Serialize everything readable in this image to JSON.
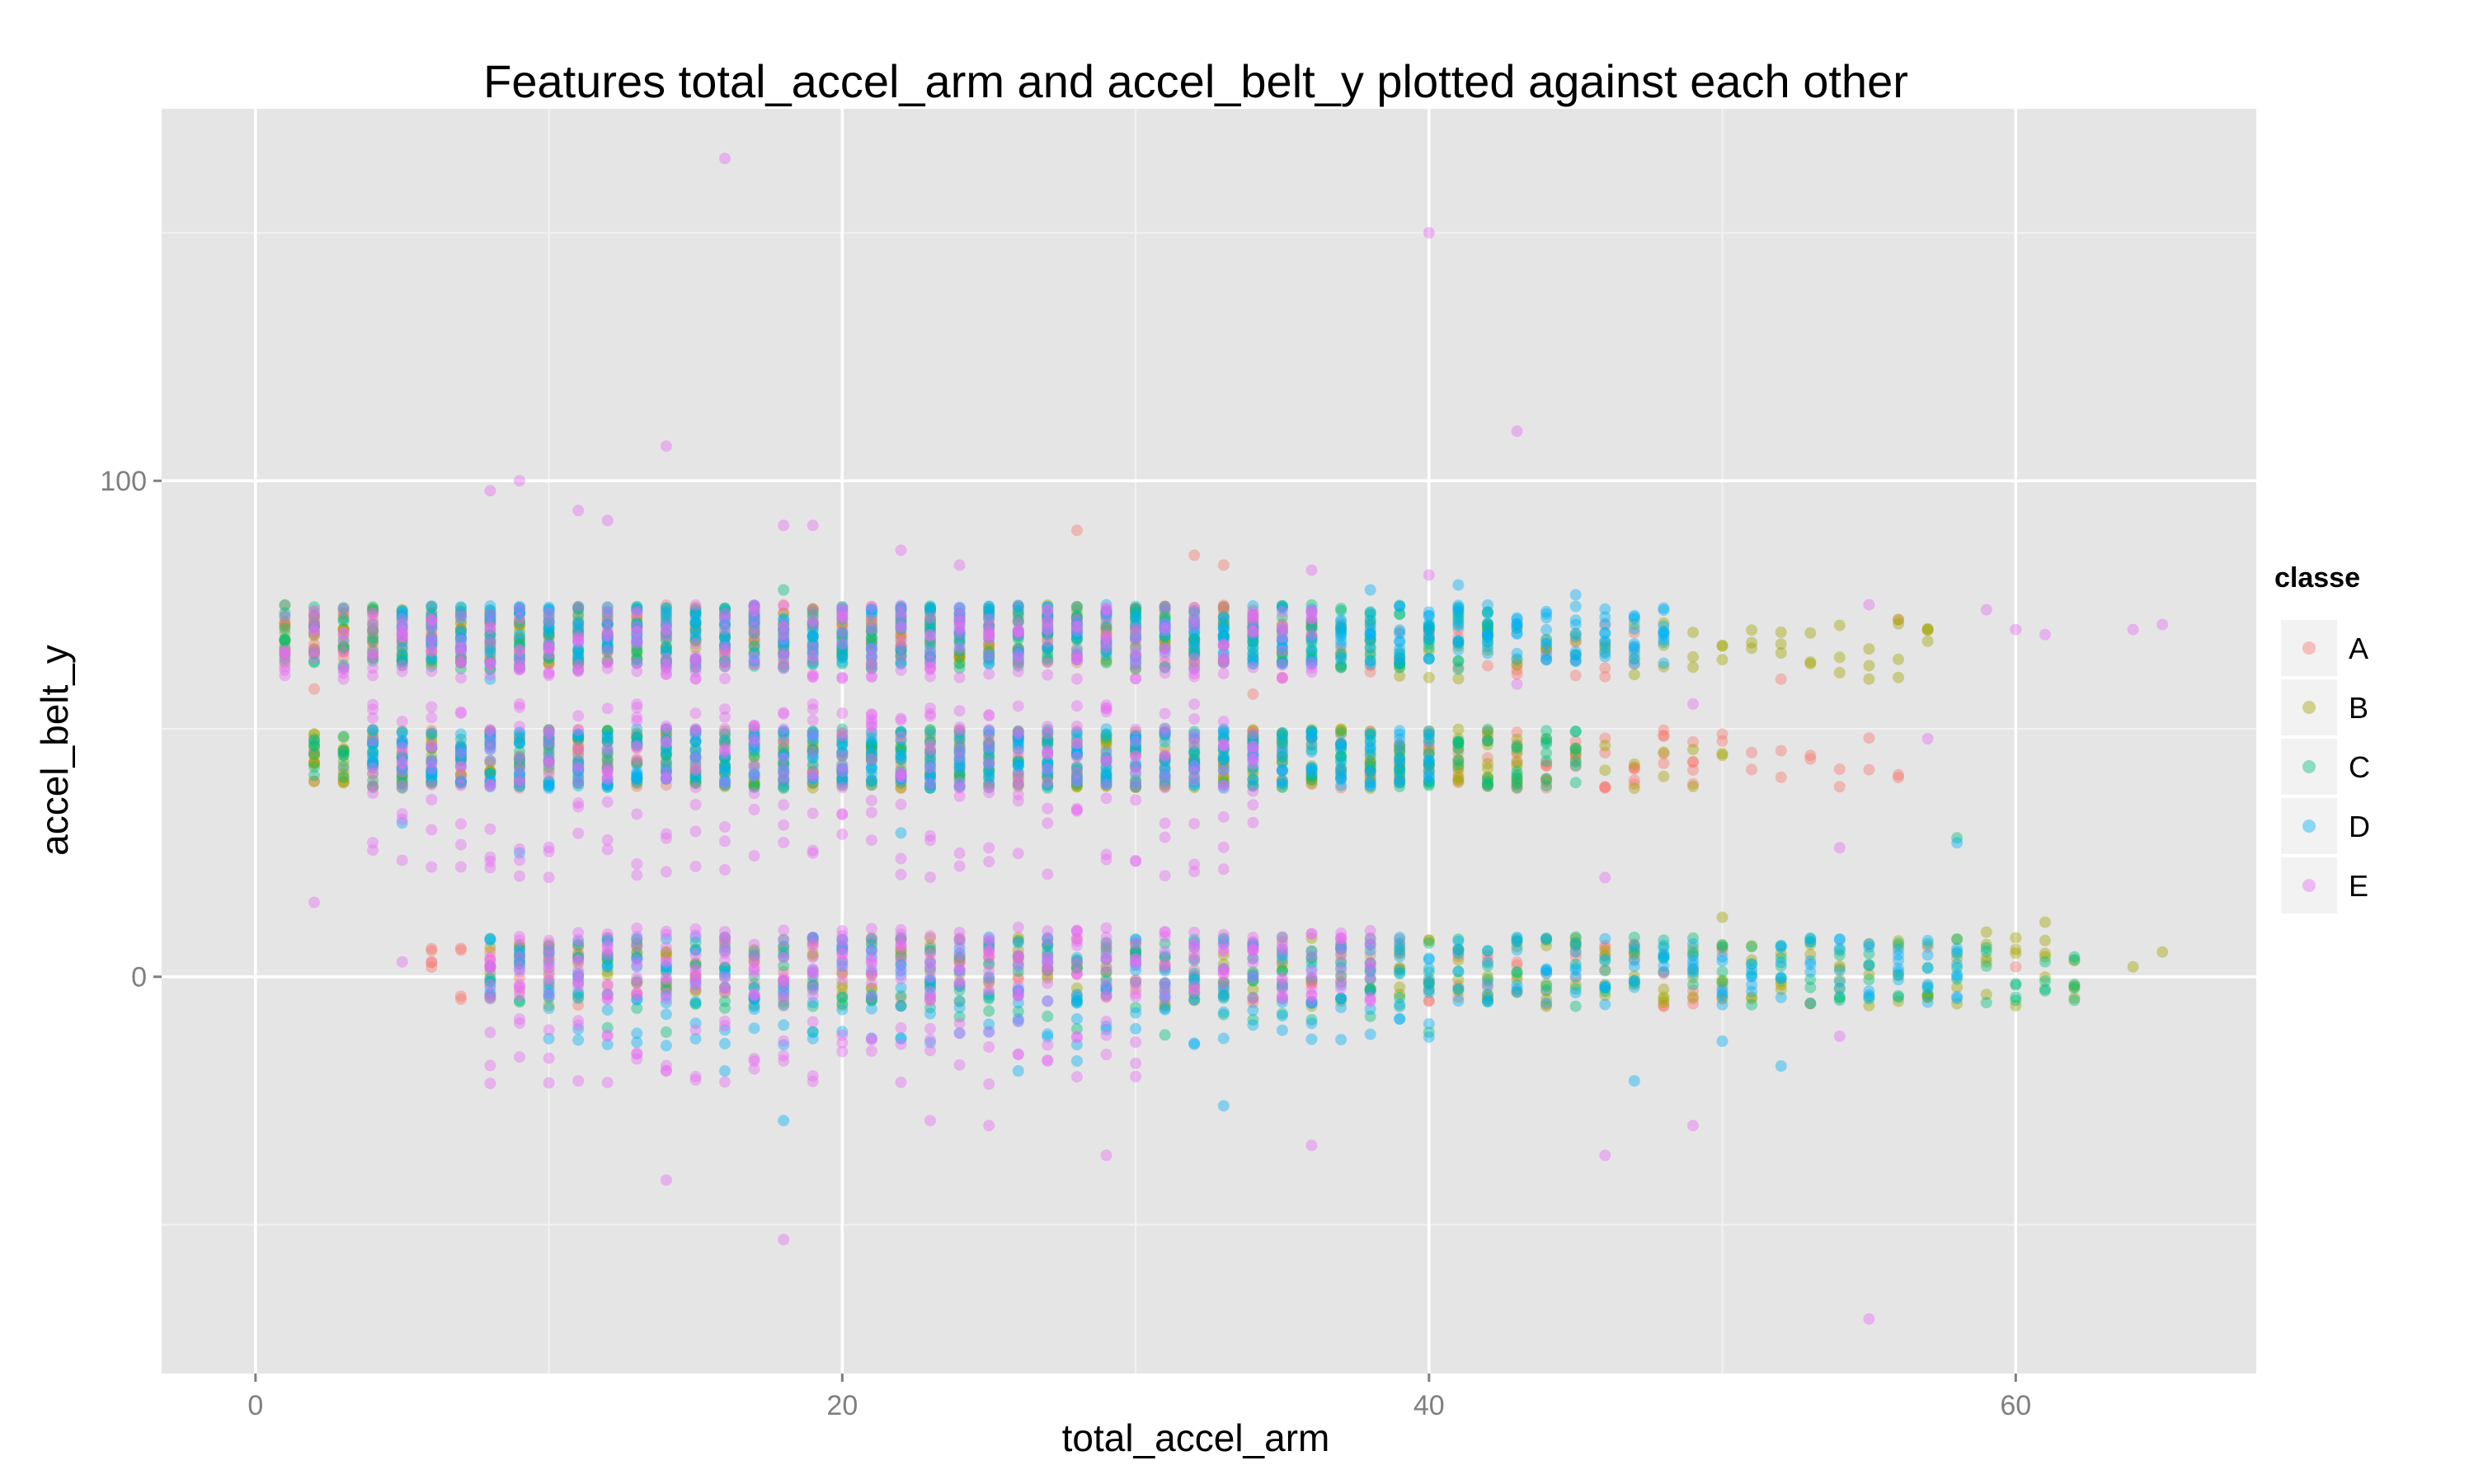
{
  "chart_data": {
    "type": "scatter",
    "title": "Features  total_accel_arm  and  accel_belt_y  plotted against each other",
    "xlabel": "total_accel_arm",
    "ylabel": "accel_belt_y",
    "xlim": [
      -3.2,
      68.2
    ],
    "ylim": [
      -80,
      175
    ],
    "x_ticks": [
      0,
      20,
      40,
      60
    ],
    "x_tick_labels": [
      "0",
      "20",
      "40",
      "60"
    ],
    "y_ticks": [
      0,
      100
    ],
    "y_tick_labels": [
      "0",
      "100"
    ],
    "grid": true,
    "legend_title": "classe",
    "legend_position": "right",
    "series": [
      {
        "name": "A",
        "color": "#F8766D",
        "bands": [
          [
            1,
            34,
            63,
            75,
            7
          ],
          [
            35,
            47,
            60,
            72,
            3
          ],
          [
            2,
            49,
            38,
            50,
            5
          ],
          [
            50,
            56,
            38,
            50,
            2
          ],
          [
            6,
            50,
            -6,
            8,
            4
          ]
        ],
        "points": [
          [
            2,
            58
          ],
          [
            28,
            90
          ],
          [
            32,
            85
          ],
          [
            33,
            83
          ],
          [
            34,
            57
          ],
          [
            52,
            60
          ],
          [
            56,
            72
          ],
          [
            44,
            43
          ],
          [
            43,
            38
          ],
          [
            45,
            46
          ],
          [
            6,
            3
          ],
          [
            57,
            6
          ],
          [
            60,
            2
          ]
        ]
      },
      {
        "name": "B",
        "color": "#A3A500",
        "bands": [
          [
            1,
            36,
            63,
            75,
            7
          ],
          [
            37,
            57,
            60,
            72,
            3
          ],
          [
            2,
            43,
            38,
            50,
            8
          ],
          [
            44,
            50,
            38,
            48,
            2
          ],
          [
            8,
            62,
            -6,
            8,
            4
          ]
        ],
        "points": [
          [
            2,
            43
          ],
          [
            30,
            62
          ],
          [
            38,
            38
          ],
          [
            39,
            40
          ],
          [
            40,
            45
          ],
          [
            41,
            42
          ],
          [
            42,
            42
          ],
          [
            43,
            40
          ],
          [
            56,
            72
          ],
          [
            57,
            70
          ],
          [
            50,
            12
          ],
          [
            61,
            11
          ],
          [
            64,
            2
          ],
          [
            65,
            5
          ],
          [
            59,
            9
          ]
        ]
      },
      {
        "name": "C",
        "color": "#00BF7D",
        "bands": [
          [
            1,
            42,
            62,
            75,
            9
          ],
          [
            2,
            45,
            38,
            50,
            7
          ],
          [
            8,
            62,
            -6,
            8,
            4
          ],
          [
            11,
            40,
            -12,
            -3,
            1
          ]
        ],
        "points": [
          [
            8,
            -1
          ],
          [
            11,
            62
          ],
          [
            13,
            64
          ],
          [
            18,
            78
          ],
          [
            44,
            47
          ],
          [
            45,
            8
          ],
          [
            54,
            -4
          ],
          [
            58,
            28
          ],
          [
            62,
            4
          ]
        ]
      },
      {
        "name": "D",
        "color": "#00B0F6",
        "bands": [
          [
            5,
            48,
            63,
            75,
            10
          ],
          [
            4,
            40,
            38,
            50,
            11
          ],
          [
            8,
            58,
            -6,
            8,
            6
          ],
          [
            10,
            40,
            -14,
            -6,
            2
          ]
        ],
        "points": [
          [
            5,
            31
          ],
          [
            8,
            60
          ],
          [
            9,
            25
          ],
          [
            22,
            29
          ],
          [
            38,
            78
          ],
          [
            41,
            79
          ],
          [
            45,
            77
          ],
          [
            16,
            -19
          ],
          [
            18,
            -29
          ],
          [
            26,
            -19
          ],
          [
            28,
            -17
          ],
          [
            33,
            -26
          ],
          [
            47,
            -21
          ],
          [
            52,
            -18
          ],
          [
            58,
            -4
          ],
          [
            58,
            27
          ],
          [
            50,
            -13
          ]
        ]
      },
      {
        "name": "E",
        "color": "#E76BF3",
        "bands": [
          [
            1,
            36,
            60,
            75,
            9
          ],
          [
            4,
            34,
            38,
            55,
            7
          ],
          [
            4,
            34,
            20,
            38,
            3
          ],
          [
            8,
            38,
            -5,
            10,
            9
          ],
          [
            8,
            30,
            -22,
            -8,
            3
          ]
        ],
        "points": [
          [
            16,
            165
          ],
          [
            40,
            150
          ],
          [
            43,
            110
          ],
          [
            14,
            107
          ],
          [
            9,
            100
          ],
          [
            8,
            98
          ],
          [
            11,
            94
          ],
          [
            12,
            92
          ],
          [
            18,
            91
          ],
          [
            19,
            91
          ],
          [
            22,
            86
          ],
          [
            24,
            83
          ],
          [
            40,
            81
          ],
          [
            36,
            82
          ],
          [
            59,
            74
          ],
          [
            60,
            70
          ],
          [
            61,
            69
          ],
          [
            64,
            70
          ],
          [
            65,
            71
          ],
          [
            55,
            75
          ],
          [
            14,
            -41
          ],
          [
            18,
            -53
          ],
          [
            55,
            -69
          ],
          [
            46,
            -36
          ],
          [
            29,
            -36
          ],
          [
            25,
            -30
          ],
          [
            49,
            -30
          ],
          [
            23,
            -29
          ],
          [
            36,
            -34
          ],
          [
            2,
            15
          ],
          [
            5,
            3
          ],
          [
            8,
            22
          ],
          [
            46,
            20
          ],
          [
            54,
            26
          ],
          [
            57,
            48
          ],
          [
            49,
            55
          ],
          [
            43,
            59
          ],
          [
            54,
            -12
          ]
        ]
      }
    ]
  }
}
